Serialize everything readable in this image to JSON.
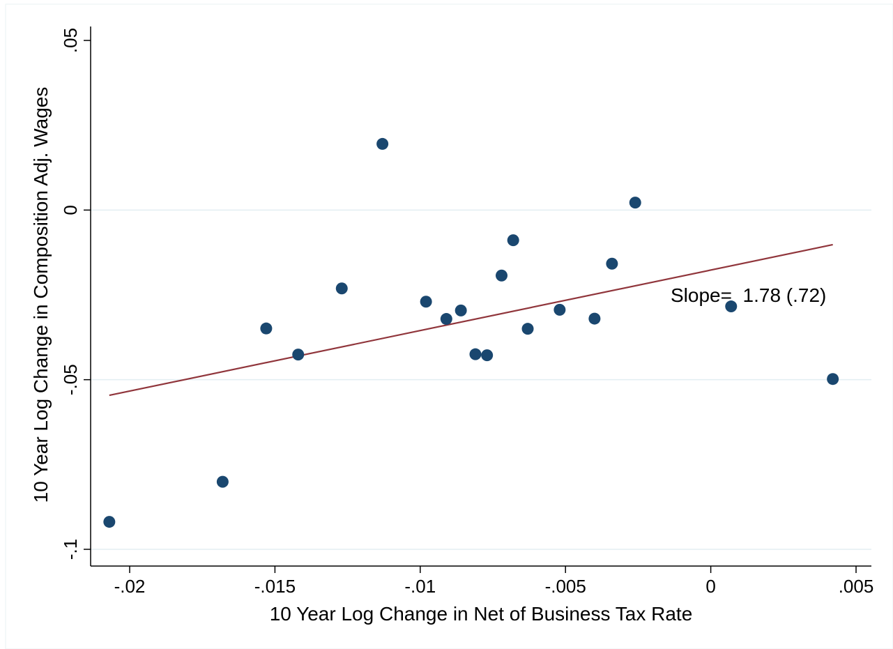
{
  "chart_data": {
    "type": "scatter",
    "title": "",
    "xlabel": "10 Year Log Change in Net of Business Tax Rate",
    "ylabel": "10 Year Log Change in Composition Adj. Wages",
    "xlim": [
      -0.0214,
      0.0056
    ],
    "ylim": [
      -0.1025,
      0.0555
    ],
    "xticks": [
      -0.02,
      -0.015,
      -0.01,
      -0.005,
      0,
      0.005
    ],
    "xtick_labels": [
      "-.02",
      "-.015",
      "-.01",
      "-.005",
      "0",
      ".005"
    ],
    "yticks": [
      -0.1,
      -0.05,
      0,
      0.05
    ],
    "ytick_labels": [
      "-.1",
      "-.05",
      "0",
      ".05"
    ],
    "grid": "horizontal",
    "series": [
      {
        "x": [
          -0.0207,
          -0.0168,
          -0.0153,
          -0.0142,
          -0.0127,
          -0.0113,
          -0.0098,
          -0.0091,
          -0.0086,
          -0.0081,
          -0.0077,
          -0.0072,
          -0.0068,
          -0.0063,
          -0.0052,
          -0.004,
          -0.0034,
          -0.0026,
          0.0007,
          0.0042
        ],
        "y": [
          -0.0919,
          -0.0801,
          -0.0349,
          -0.0426,
          -0.0231,
          0.0195,
          -0.027,
          -0.0321,
          -0.0296,
          -0.0425,
          -0.0428,
          -0.0193,
          -0.0089,
          -0.035,
          -0.0294,
          -0.032,
          -0.0158,
          0.0022,
          -0.0284,
          -0.0498
        ],
        "color": "#1a476f"
      }
    ],
    "fit_line": {
      "x": [
        -0.0207,
        0.0042
      ],
      "y": [
        -0.0546,
        -0.0102
      ],
      "color": "#90353b"
    },
    "annotation": "Slope=  1.78 (.72)"
  }
}
